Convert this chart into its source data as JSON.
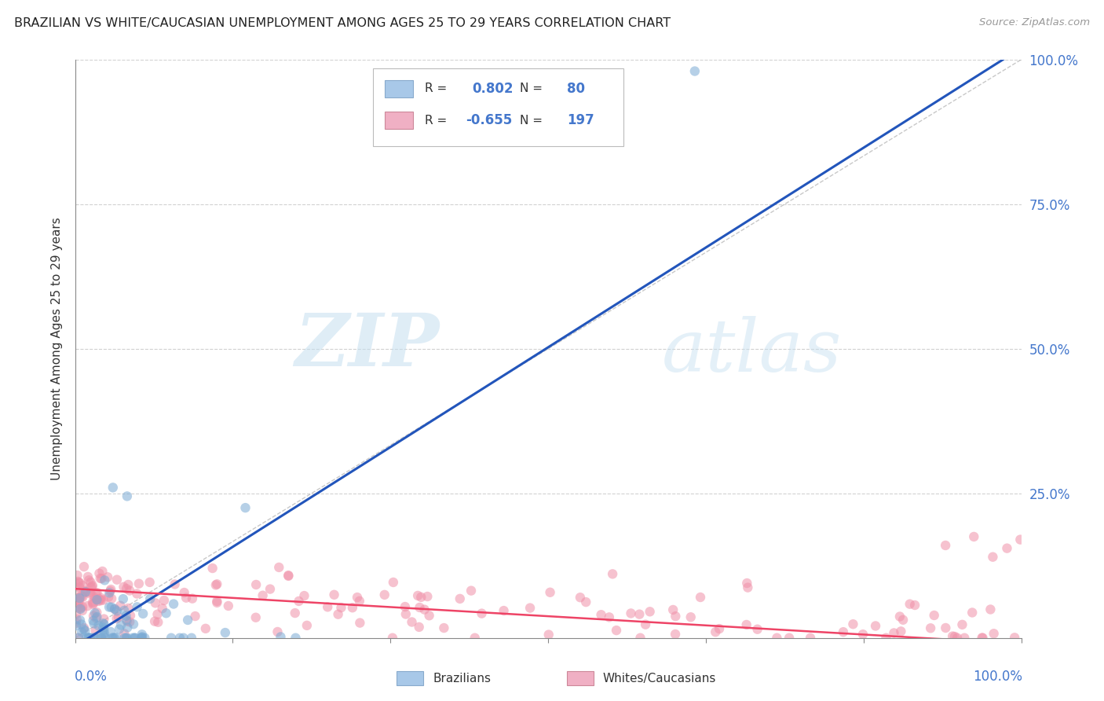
{
  "title": "BRAZILIAN VS WHITE/CAUCASIAN UNEMPLOYMENT AMONG AGES 25 TO 29 YEARS CORRELATION CHART",
  "source": "Source: ZipAtlas.com",
  "ylabel": "Unemployment Among Ages 25 to 29 years",
  "watermark_zip": "ZIP",
  "watermark_atlas": "atlas",
  "background_color": "#ffffff",
  "grid_color": "#cccccc",
  "title_color": "#222222",
  "axis_tick_color": "#4477cc",
  "brazil_scatter_color": "#7aaad4",
  "white_scatter_color": "#f090a8",
  "brazil_line_color": "#2255bb",
  "white_line_color": "#ee4466",
  "diagonal_color": "#bbbbbb",
  "brazil_R": 0.802,
  "brazil_N": 80,
  "white_R": -0.655,
  "white_N": 197,
  "brazil_line": [
    0.0,
    -0.015,
    1.0,
    1.02
  ],
  "white_line": [
    0.0,
    0.085,
    1.0,
    -0.01
  ],
  "yticks": [
    0.25,
    0.5,
    0.75,
    1.0
  ],
  "ytick_labels": [
    "25.0%",
    "50.0%",
    "75.0%",
    "100.0%"
  ],
  "legend_R1": "0.802",
  "legend_N1": "80",
  "legend_R2": "-0.655",
  "legend_N2": "197",
  "legend_color1": "#a8c8e8",
  "legend_color2": "#f0b0c4",
  "legend_border": "#bbbbbb",
  "scatter_size": 80,
  "scatter_alpha": 0.55
}
